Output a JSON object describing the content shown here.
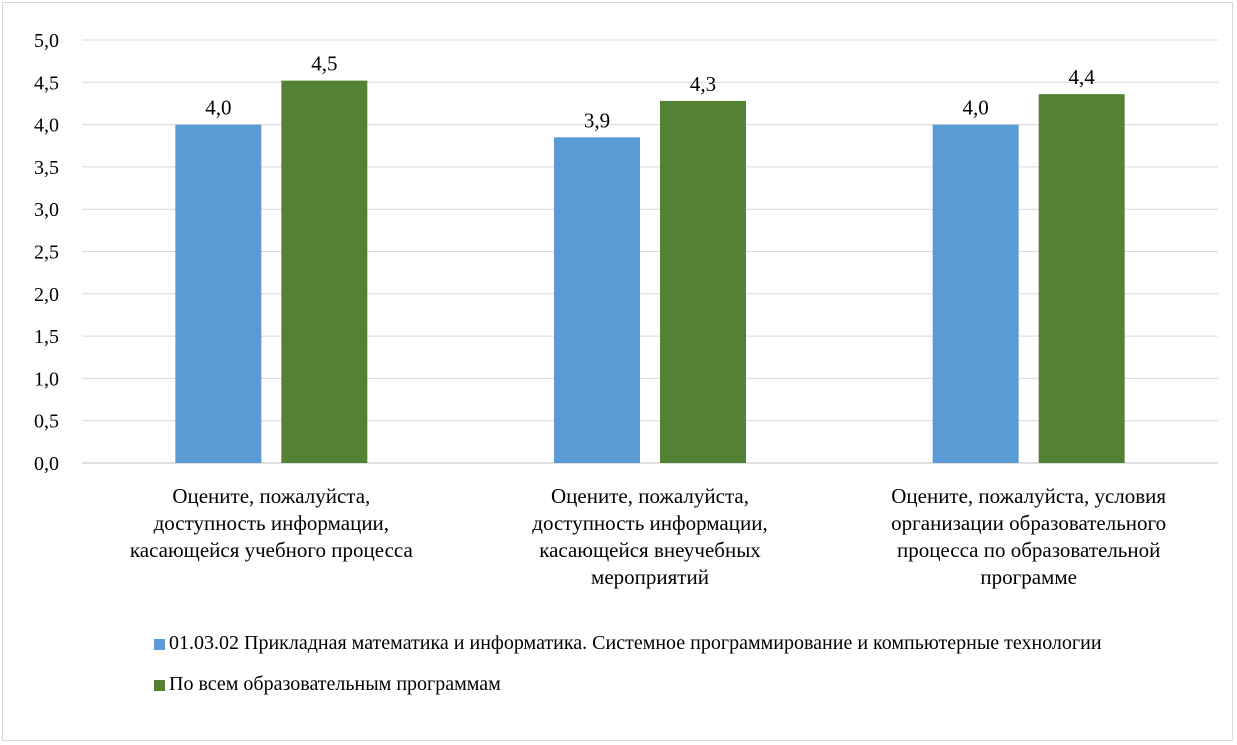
{
  "chart_data": {
    "type": "bar",
    "title": "",
    "xlabel": "",
    "ylabel": "",
    "ylim": [
      0,
      5
    ],
    "yticks": [
      "0,0",
      "0,5",
      "1,0",
      "1,5",
      "2,0",
      "2,5",
      "3,0",
      "3,5",
      "4,0",
      "4,5",
      "5,0"
    ],
    "grid": true,
    "legend_position": "bottom",
    "categories": [
      [
        "Оцените, пожалуйста,",
        "доступность информации,",
        "касающейся учебного процесса"
      ],
      [
        "Оцените, пожалуйста,",
        "доступность информации,",
        "касающейся внеучебных",
        "мероприятий"
      ],
      [
        "Оцените, пожалуйста, условия",
        "организации образовательного",
        "процесса по образовательной",
        "программе"
      ]
    ],
    "series": [
      {
        "name": "01.03.02 Прикладная математика и информатика. Системное программирование и компьютерные технологии",
        "color": "#5b9bd5",
        "values": [
          4.0,
          3.85,
          4.0
        ],
        "labels": [
          "4,0",
          "3,9",
          "4,0"
        ]
      },
      {
        "name": "По всем образовательным программам",
        "color": "#548235",
        "values": [
          4.52,
          4.28,
          4.36
        ],
        "labels": [
          "4,5",
          "4,3",
          "4,4"
        ]
      }
    ]
  }
}
